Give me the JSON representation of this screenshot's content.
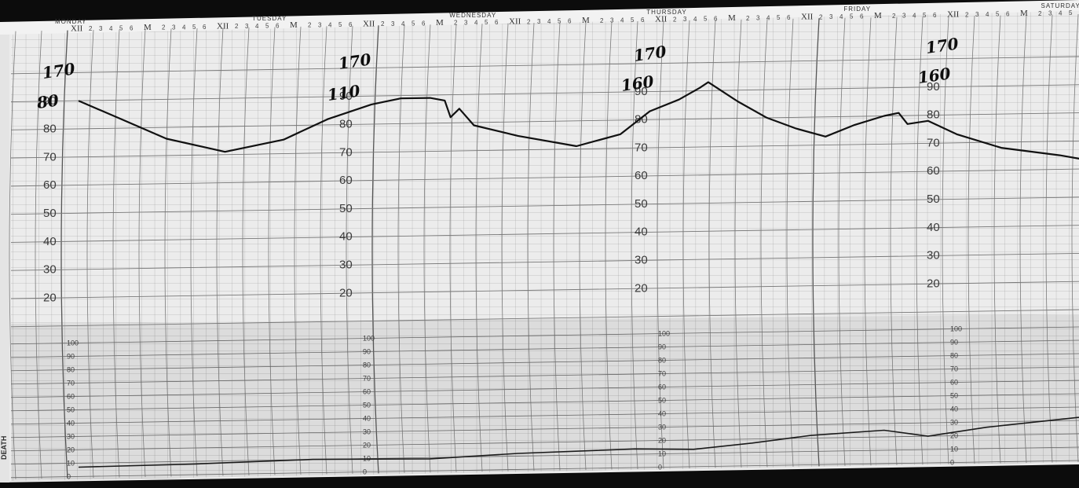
{
  "chart_data": {
    "type": "line",
    "title": "",
    "xlabel": "",
    "ylabel": "",
    "day_labels": [
      "MONDAY",
      "TUESDAY",
      "WEDNESDAY",
      "THURSDAY",
      "FRIDAY",
      "SATURDAY"
    ],
    "hour_marks": [
      "XII",
      "M",
      "XII",
      "M",
      "XII",
      "M",
      "XII",
      "M",
      "XII",
      "M",
      "XII",
      "M",
      "XII",
      "M"
    ],
    "side_label": "DEATH",
    "upper_scale": {
      "ylim": [
        10,
        100
      ],
      "ticks": [
        "90",
        "80",
        "70",
        "60",
        "50",
        "40",
        "30",
        "20"
      ]
    },
    "lower_scale": {
      "ylim": [
        0,
        100
      ],
      "ticks": [
        "100",
        "90",
        "80",
        "70",
        "60",
        "50",
        "40",
        "30",
        "20",
        "10",
        "0"
      ]
    },
    "series": [
      {
        "values": [
          [
            0.0,
            90
          ],
          [
            0.15,
            83
          ],
          [
            0.3,
            76
          ],
          [
            0.5,
            71
          ],
          [
            0.7,
            75
          ],
          [
            0.85,
            82
          ],
          [
            1.0,
            87
          ],
          [
            1.1,
            89
          ],
          [
            1.2,
            89
          ],
          [
            1.25,
            88
          ],
          [
            1.27,
            82
          ],
          [
            1.3,
            85
          ],
          [
            1.35,
            79
          ],
          [
            1.5,
            75
          ],
          [
            1.7,
            71
          ],
          [
            1.85,
            75
          ],
          [
            1.95,
            83
          ],
          [
            2.05,
            87
          ],
          [
            2.12,
            91
          ],
          [
            2.15,
            93
          ],
          [
            2.25,
            86
          ],
          [
            2.35,
            80
          ],
          [
            2.45,
            76
          ],
          [
            2.55,
            73
          ],
          [
            2.65,
            77
          ],
          [
            2.75,
            80
          ],
          [
            2.8,
            81
          ],
          [
            2.83,
            77
          ],
          [
            2.9,
            78
          ],
          [
            3.0,
            73
          ],
          [
            3.15,
            68
          ],
          [
            3.35,
            65
          ],
          [
            3.45,
            63
          ],
          [
            3.5,
            62
          ],
          [
            3.55,
            68
          ],
          [
            3.65,
            78
          ],
          [
            3.75,
            84
          ],
          [
            3.85,
            87
          ],
          [
            4.0,
            82
          ],
          [
            4.05,
            82
          ],
          [
            4.08,
            75
          ],
          [
            4.15,
            69
          ],
          [
            4.25,
            71
          ],
          [
            4.4,
            80
          ],
          [
            4.5,
            87
          ],
          [
            4.6,
            89
          ],
          [
            4.7,
            89
          ],
          [
            4.82,
            86
          ],
          [
            4.9,
            78
          ],
          [
            5.0,
            77
          ],
          [
            5.12,
            75
          ],
          [
            5.25,
            80
          ],
          [
            5.35,
            87
          ],
          [
            5.45,
            91
          ],
          [
            5.6,
            91
          ],
          [
            5.75,
            87
          ],
          [
            5.8,
            77
          ],
          [
            5.88,
            80
          ],
          [
            6.0,
            76
          ],
          [
            6.1,
            78
          ],
          [
            6.2,
            84
          ]
        ]
      },
      {
        "values": [
          [
            0.0,
            7
          ],
          [
            0.4,
            8
          ],
          [
            0.8,
            10
          ],
          [
            1.2,
            9
          ],
          [
            1.5,
            12
          ],
          [
            1.9,
            14
          ],
          [
            2.1,
            13
          ],
          [
            2.3,
            17
          ],
          [
            2.5,
            22
          ],
          [
            2.75,
            25
          ],
          [
            2.9,
            20
          ],
          [
            3.1,
            26
          ],
          [
            3.3,
            30
          ],
          [
            3.55,
            35
          ],
          [
            3.75,
            27
          ],
          [
            4.0,
            25
          ],
          [
            4.3,
            24
          ],
          [
            4.6,
            20
          ],
          [
            4.9,
            21
          ],
          [
            5.2,
            24
          ],
          [
            5.5,
            22
          ],
          [
            5.85,
            22
          ],
          [
            6.2,
            24
          ]
        ]
      }
    ],
    "handwritten": [
      "170",
      "80",
      "170",
      "110",
      "170",
      "160",
      "170",
      "160"
    ],
    "grid": true
  }
}
